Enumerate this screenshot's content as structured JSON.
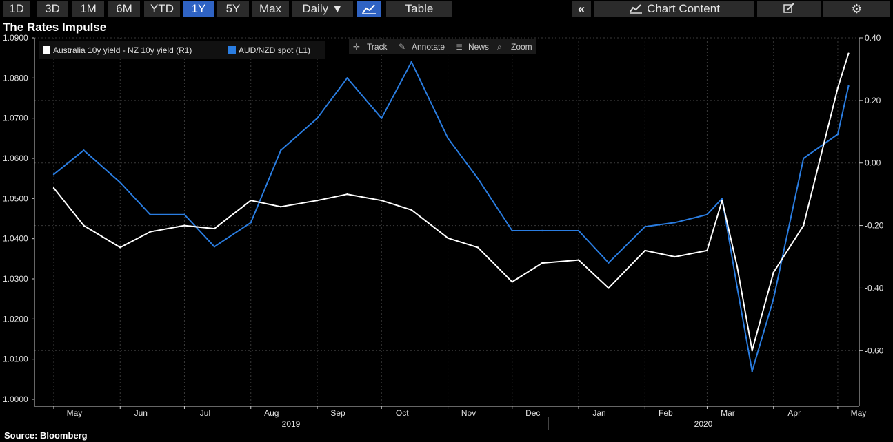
{
  "toolbar": {
    "periods": [
      "1D",
      "3D",
      "1M",
      "6M",
      "YTD",
      "1Y",
      "5Y",
      "Max"
    ],
    "active_period": "1Y",
    "frequency": "Daily ▼",
    "table_label": "Table",
    "collapse_icon": "double-chevron-left-icon",
    "chart_content_label": "Chart Content",
    "chart_content_icon": "line-chart-icon",
    "edit_icon": "edit-icon",
    "settings_icon": "gear-icon",
    "line_icon": "line-chart-icon"
  },
  "chart_tools": {
    "track": "Track",
    "annotate": "Annotate",
    "news": "News",
    "zoom": "Zoom"
  },
  "title": "The Rates Impulse",
  "source": "Source: Bloomberg",
  "chart_data": {
    "type": "line",
    "title": "The Rates Impulse",
    "x_tick_labels": [
      "May",
      "Jun",
      "Jul",
      "Aug",
      "Sep",
      "Oct",
      "Nov",
      "Dec",
      "Jan",
      "Feb",
      "Mar",
      "Apr",
      "May"
    ],
    "year_labels": [
      "2019",
      "2020"
    ],
    "left_axis": {
      "ticks": [
        "1.0000",
        "1.0100",
        "1.0200",
        "1.0300",
        "1.0400",
        "1.0500",
        "1.0600",
        "1.0700",
        "1.0800",
        "1.0900"
      ],
      "ylim": [
        1.0,
        1.09
      ]
    },
    "right_axis": {
      "ticks": [
        "0.40",
        "0.20",
        "0.00",
        "-0.20",
        "-0.40",
        "-0.60"
      ],
      "ylim": [
        -0.76,
        0.4
      ]
    },
    "grid": true,
    "legend_position": "top-left",
    "series": [
      {
        "name": "Australia 10y yield - NZ 10y yield (R1)",
        "axis": "right",
        "color": "#ffffff",
        "x": [
          "2019-05-01",
          "2019-05-15",
          "2019-06-01",
          "2019-06-15",
          "2019-07-01",
          "2019-07-15",
          "2019-08-01",
          "2019-08-15",
          "2019-09-01",
          "2019-09-15",
          "2019-10-01",
          "2019-10-15",
          "2019-11-01",
          "2019-11-15",
          "2019-12-01",
          "2019-12-15",
          "2020-01-01",
          "2020-01-15",
          "2020-02-01",
          "2020-02-15",
          "2020-03-01",
          "2020-03-08",
          "2020-03-15",
          "2020-03-22",
          "2020-04-01",
          "2020-04-15",
          "2020-05-01",
          "2020-05-06"
        ],
        "values": [
          -0.08,
          -0.2,
          -0.27,
          -0.22,
          -0.2,
          -0.21,
          -0.12,
          -0.14,
          -0.12,
          -0.1,
          -0.12,
          -0.15,
          -0.24,
          -0.27,
          -0.38,
          -0.32,
          -0.31,
          -0.4,
          -0.28,
          -0.3,
          -0.28,
          -0.12,
          -0.33,
          -0.6,
          -0.35,
          -0.2,
          0.24,
          0.35
        ]
      },
      {
        "name": "AUD/NZD spot (L1)",
        "axis": "left",
        "color": "#2a7de1",
        "x": [
          "2019-05-01",
          "2019-05-15",
          "2019-06-01",
          "2019-06-15",
          "2019-07-01",
          "2019-07-15",
          "2019-08-01",
          "2019-08-15",
          "2019-09-01",
          "2019-09-15",
          "2019-10-01",
          "2019-10-15",
          "2019-11-01",
          "2019-11-15",
          "2019-12-01",
          "2019-12-15",
          "2020-01-01",
          "2020-01-15",
          "2020-02-01",
          "2020-02-15",
          "2020-03-01",
          "2020-03-08",
          "2020-03-15",
          "2020-03-22",
          "2020-04-01",
          "2020-04-15",
          "2020-05-01",
          "2020-05-06"
        ],
        "values": [
          1.056,
          1.062,
          1.054,
          1.046,
          1.046,
          1.038,
          1.044,
          1.062,
          1.07,
          1.08,
          1.07,
          1.084,
          1.065,
          1.055,
          1.042,
          1.042,
          1.042,
          1.034,
          1.043,
          1.044,
          1.046,
          1.05,
          1.028,
          1.007,
          1.025,
          1.06,
          1.066,
          1.078
        ]
      }
    ]
  }
}
